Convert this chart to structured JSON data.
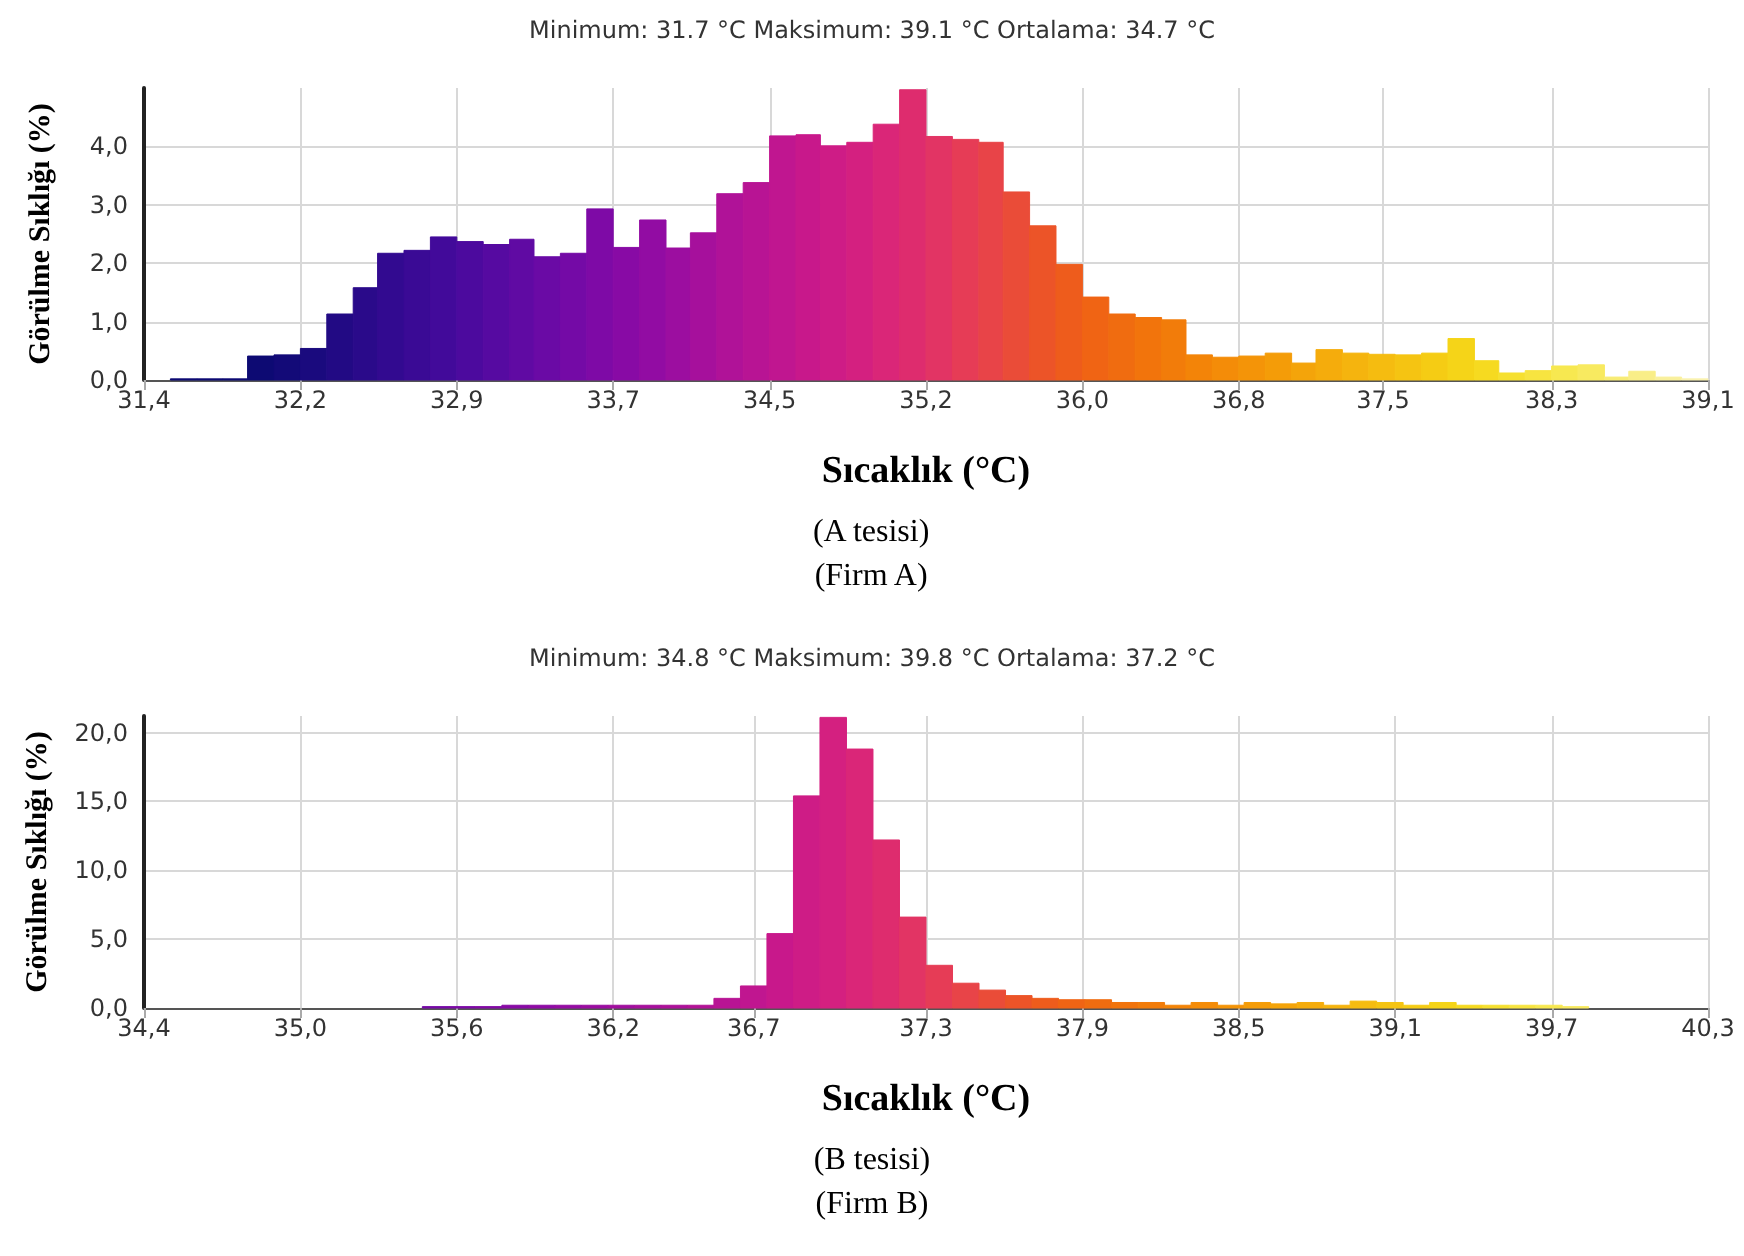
{
  "chart_data": [
    {
      "type": "histogram",
      "title": "Minimum: 31.7 °C Maksimum: 39.1 °C Ortalama: 34.7 °C",
      "xlabel": "Sıcaklık (°C)",
      "ylabel": "Görülme Sıklığı (%)",
      "annotations": [
        "(A tesisi)",
        "(Firm A)"
      ],
      "bins": [
        31.53,
        31.66,
        31.79,
        31.91,
        32.04,
        32.17,
        32.3,
        32.43,
        32.55,
        32.68,
        32.81,
        32.94,
        33.07,
        33.2,
        33.32,
        33.45,
        33.58,
        33.71,
        33.84,
        33.97,
        34.09,
        34.22,
        34.35,
        34.48,
        34.61,
        34.73,
        34.86,
        34.99,
        35.12,
        35.25,
        35.38,
        35.51,
        35.63,
        35.76,
        35.89,
        36.02,
        36.15,
        36.28,
        36.41,
        36.53,
        36.66,
        36.79,
        36.92,
        37.05,
        37.17,
        37.3,
        37.43,
        37.56,
        37.69,
        37.82,
        37.95,
        38.07,
        38.2,
        38.33,
        38.46,
        38.59,
        38.71,
        38.84,
        38.97,
        39.1
      ],
      "values": [
        0.02,
        0.02,
        0.02,
        0.41,
        0.43,
        0.54,
        1.13,
        1.58,
        2.17,
        2.22,
        2.45,
        2.37,
        2.32,
        2.41,
        2.11,
        2.17,
        2.93,
        2.27,
        2.74,
        2.26,
        2.52,
        3.19,
        3.38,
        4.18,
        4.2,
        4.01,
        4.07,
        4.38,
        4.97,
        4.17,
        4.12,
        4.07,
        3.22,
        2.64,
        1.98,
        1.42,
        1.13,
        1.07,
        1.03,
        0.43,
        0.39,
        0.41,
        0.46,
        0.29,
        0.52,
        0.46,
        0.44,
        0.43,
        0.46,
        0.71,
        0.33,
        0.12,
        0.16,
        0.24,
        0.26,
        0.05,
        0.15,
        0.05,
        0.02
      ],
      "colors": [
        "#0d0a73",
        "#0d0a73",
        "#0d0a73",
        "#0d0a73",
        "#130a78",
        "#1a0a7e",
        "#220a84",
        "#2a0a8a",
        "#320a90",
        "#3a0a95",
        "#420a9a",
        "#4c0a9e",
        "#560aa1",
        "#600aa3",
        "#6a0aa5",
        "#740aa6",
        "#7e0aa6",
        "#880aa5",
        "#920ca3",
        "#9c0ea0",
        "#a6109c",
        "#b01298",
        "#b81494",
        "#c01690",
        "#c8188b",
        "#ce1c86",
        "#d42080",
        "#da2678",
        "#de2c6e",
        "#e23464",
        "#e63c56",
        "#e84448",
        "#ea4c38",
        "#ec5428",
        "#ee5c1c",
        "#f06414",
        "#f06c10",
        "#f2740c",
        "#f27c0a",
        "#f38408",
        "#f48c08",
        "#f49408",
        "#f49c08",
        "#f4a40a",
        "#f5ac0c",
        "#f5b40e",
        "#f5bc10",
        "#f5c412",
        "#f5cc14",
        "#f5d418",
        "#f6da20",
        "#f6e030",
        "#f7e440",
        "#f7e850",
        "#f8ea60",
        "#f8ec74",
        "#f9ee88",
        "#f9f09c",
        "#faf2b0"
      ],
      "xlim": [
        31.4,
        39.1
      ],
      "xticks": [
        {
          "value": 31.4,
          "label": "31,4"
        },
        {
          "value": 32.17,
          "label": "32,2"
        },
        {
          "value": 32.94,
          "label": "32,9"
        },
        {
          "value": 33.71,
          "label": "33,7"
        },
        {
          "value": 34.48,
          "label": "34,5"
        },
        {
          "value": 35.25,
          "label": "35,2"
        },
        {
          "value": 36.02,
          "label": "36,0"
        },
        {
          "value": 36.79,
          "label": "36,8"
        },
        {
          "value": 37.5,
          "label": "37,5"
        },
        {
          "value": 38.33,
          "label": "38,3"
        },
        {
          "value": 39.1,
          "label": "39,1"
        }
      ],
      "ylim": [
        0,
        5
      ],
      "yticks": [
        {
          "value": 0,
          "label": "0,0"
        },
        {
          "value": 1,
          "label": "1,0"
        },
        {
          "value": 2,
          "label": "2,0"
        },
        {
          "value": 3,
          "label": "3,0"
        },
        {
          "value": 4,
          "label": "4,0"
        }
      ],
      "grid": true
    },
    {
      "type": "histogram",
      "title": "Minimum: 34.8 °C Maksimum: 39.8 °C Ortalama: 37.2 °C",
      "xlabel": "Sıcaklık (°C)",
      "ylabel": "Görülme Sıklığı (%)",
      "annotations": [
        "(B tesisi)",
        "(Firm B)"
      ],
      "bins": [
        35.45,
        35.55,
        35.65,
        35.75,
        35.85,
        35.95,
        36.05,
        36.15,
        36.25,
        36.35,
        36.45,
        36.55,
        36.65,
        36.75,
        36.85,
        36.95,
        37.05,
        37.15,
        37.25,
        37.35,
        37.45,
        37.55,
        37.65,
        37.75,
        37.85,
        37.95,
        38.05,
        38.15,
        38.25,
        38.35,
        38.45,
        38.55,
        38.65,
        38.75,
        38.85,
        38.95,
        39.05,
        39.15,
        39.25,
        39.35,
        39.45,
        39.55,
        39.65,
        39.75,
        39.85
      ],
      "values": [
        0.1,
        0.1,
        0.1,
        0.2,
        0.2,
        0.2,
        0.2,
        0.2,
        0.2,
        0.2,
        0.2,
        0.7,
        1.6,
        5.4,
        15.4,
        21.1,
        18.8,
        12.2,
        6.6,
        3.1,
        1.8,
        1.3,
        0.9,
        0.7,
        0.6,
        0.6,
        0.4,
        0.4,
        0.2,
        0.4,
        0.2,
        0.4,
        0.3,
        0.4,
        0.2,
        0.5,
        0.4,
        0.2,
        0.4,
        0.2,
        0.2,
        0.2,
        0.2,
        0.1
      ],
      "colors": [
        "#760aa6",
        "#7c0aa6",
        "#820aa5",
        "#880aa5",
        "#8e0ba4",
        "#940ca2",
        "#9a0da0",
        "#a00f9e",
        "#a6109c",
        "#ac1199",
        "#b21296",
        "#b81494",
        "#c01690",
        "#c8188b",
        "#ce1c86",
        "#d42080",
        "#da2678",
        "#de2c6e",
        "#e23464",
        "#e63c56",
        "#e84448",
        "#ea4c38",
        "#ec5428",
        "#ee5c1c",
        "#f06414",
        "#f06c10",
        "#f2740c",
        "#f27c0a",
        "#f38408",
        "#f48c08",
        "#f49408",
        "#f49c08",
        "#f4a40a",
        "#f5ac0c",
        "#f5b40e",
        "#f5bc10",
        "#f5c412",
        "#f5cc14",
        "#f5d418",
        "#f6da20",
        "#f6e030",
        "#f7e440",
        "#f7e850",
        "#f8ea60"
      ],
      "xlim": [
        34.4,
        40.3
      ],
      "xticks": [
        {
          "value": 34.4,
          "label": "34,4"
        },
        {
          "value": 34.99,
          "label": "35,0"
        },
        {
          "value": 35.58,
          "label": "35,6"
        },
        {
          "value": 36.17,
          "label": "36,2"
        },
        {
          "value": 36.7,
          "label": "36,7"
        },
        {
          "value": 37.35,
          "label": "37,3"
        },
        {
          "value": 37.94,
          "label": "37,9"
        },
        {
          "value": 38.53,
          "label": "38,5"
        },
        {
          "value": 39.12,
          "label": "39,1"
        },
        {
          "value": 39.71,
          "label": "39,7"
        },
        {
          "value": 40.3,
          "label": "40,3"
        }
      ],
      "ylim": [
        0,
        21.2
      ],
      "yticks": [
        {
          "value": 0,
          "label": "0,0"
        },
        {
          "value": 5,
          "label": "5,0"
        },
        {
          "value": 10,
          "label": "10,0"
        },
        {
          "value": 15,
          "label": "15,0"
        },
        {
          "value": 20,
          "label": "20,0"
        }
      ],
      "grid": true
    }
  ]
}
